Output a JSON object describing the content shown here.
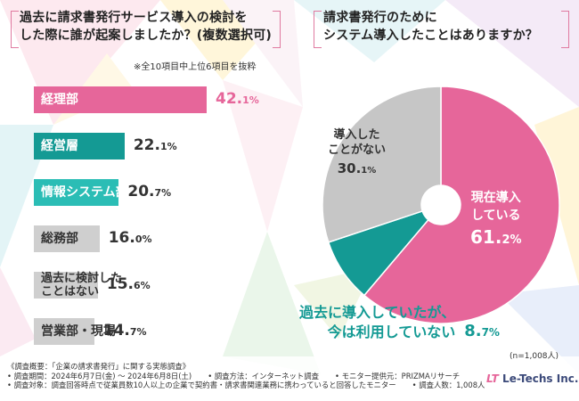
{
  "left_panel": {
    "title_line1": "過去に請求書発行サービス導入の検討を",
    "title_line2": "した際に誰が起案しましたか？(複数選択可)",
    "note": "※全10項目中上位6項目を抜粋"
  },
  "right_panel": {
    "title_line1": "請求書発行のために",
    "title_line2": "システム導入したことはありますか？"
  },
  "chart_data": [
    {
      "type": "bar",
      "orientation": "horizontal",
      "title": "過去に請求書発行サービス導入の検討をした際に誰が起案しましたか？(複数選択可)",
      "categories": [
        "経理部",
        "経営層",
        "情報システム部",
        "総務部",
        "過去に検討したことはない",
        "営業部・現場"
      ],
      "category_lines": [
        [
          "経理部"
        ],
        [
          "経営層"
        ],
        [
          "情報システム部"
        ],
        [
          "総務部"
        ],
        [
          "過去に検討した",
          "ことはない"
        ],
        [
          "営業部・現場"
        ]
      ],
      "values": [
        42.1,
        22.1,
        20.7,
        16.0,
        15.6,
        14.7
      ],
      "value_labels": [
        {
          "int": "42.",
          "dec": "1%"
        },
        {
          "int": "22.",
          "dec": "1%"
        },
        {
          "int": "20.",
          "dec": "7%"
        },
        {
          "int": "16.",
          "dec": "0%"
        },
        {
          "int": "15.",
          "dec": "6%"
        },
        {
          "int": "14.",
          "dec": "7%"
        }
      ],
      "colors": [
        "#e6669a",
        "#149a94",
        "#2bbdb5",
        "#cfcfcf",
        "#cfcfcf",
        "#cfcfcf"
      ],
      "label_colors": [
        "#ffffff",
        "#ffffff",
        "#ffffff",
        "#333333",
        "#333333",
        "#333333"
      ],
      "value_colors": [
        "#e6669a",
        "#333333",
        "#333333",
        "#333333",
        "#333333",
        "#333333"
      ],
      "unit": "%"
    },
    {
      "type": "pie",
      "style": "donut",
      "title": "請求書発行のためにシステム導入したことはありますか？",
      "slices": [
        {
          "label_lines": [
            "現在導入",
            "している"
          ],
          "value": 61.2,
          "value_int": "61.",
          "value_dec": "2%",
          "color": "#e6669a",
          "text_color": "#ffffff"
        },
        {
          "label_lines": [
            "過去に導入していたが、",
            "今は利用していない"
          ],
          "value": 8.7,
          "value_int": "8.",
          "value_dec": "7%",
          "color": "#149a94",
          "text_color": "#149a94"
        },
        {
          "label_lines": [
            "導入した",
            "ことがない"
          ],
          "value": 30.1,
          "value_int": "30.",
          "value_dec": "1%",
          "color": "#c6c6c6",
          "text_color": "#333333"
        }
      ],
      "n_note": "(n=1,008人)"
    }
  ],
  "footer": {
    "line1_a": "《調査概要：「企業の請求書発行」に関する実態調査》",
    "line2_a": "• 調査期間：2024年6月7日(金) ～ 2024年6月8日(土)",
    "line2_b": "• 調査方法：インターネット調査",
    "line2_c": "• モニター提供元：PRIZMAリサーチ",
    "line3_a": "• 調査対象：調査回答時点で従業員数10人以上の企業で契約書・請求書関連業務に携わっていると回答したモニター",
    "line3_b": "• 調査人数：1,008人"
  },
  "logo": {
    "text": "Le-Techs Inc.",
    "mark": "LT"
  }
}
